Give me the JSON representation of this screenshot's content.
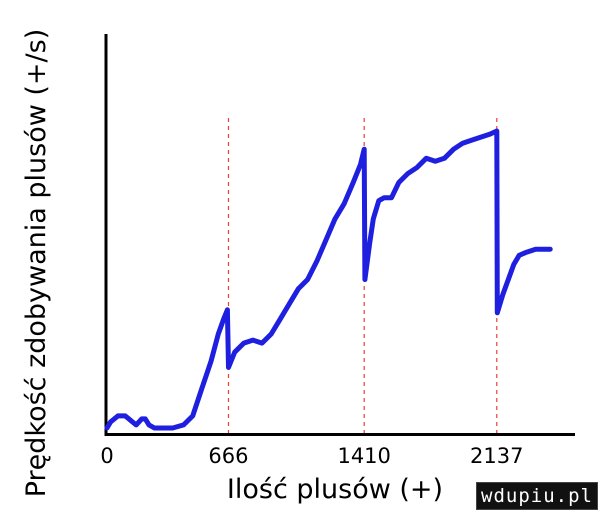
{
  "chart_data": {
    "type": "line",
    "title": "",
    "xlabel": "Ilość plusów (+)",
    "ylabel": "Prędkość zdobywania plusów (+/s)",
    "xlim": [
      0,
      2500
    ],
    "ylim": [
      0,
      100
    ],
    "x_ticks": [
      0,
      666,
      1410,
      2137
    ],
    "x_tick_labels": [
      "0",
      "666",
      "1410",
      "2137"
    ],
    "grid": "dashed red vertical lines at x = 666, 1410, 2137",
    "series": [
      {
        "values": [
          [
            0,
            1
          ],
          [
            20,
            3
          ],
          [
            60,
            5
          ],
          [
            100,
            5
          ],
          [
            140,
            3
          ],
          [
            160,
            2
          ],
          [
            190,
            4
          ],
          [
            210,
            4
          ],
          [
            230,
            2
          ],
          [
            260,
            1
          ],
          [
            320,
            1
          ],
          [
            360,
            1
          ],
          [
            420,
            2
          ],
          [
            470,
            5
          ],
          [
            520,
            14
          ],
          [
            570,
            23
          ],
          [
            610,
            32
          ],
          [
            640,
            37
          ],
          [
            660,
            40
          ],
          [
            666,
            21
          ],
          [
            700,
            26
          ],
          [
            750,
            29
          ],
          [
            800,
            30
          ],
          [
            850,
            29
          ],
          [
            900,
            32
          ],
          [
            950,
            37
          ],
          [
            1000,
            42
          ],
          [
            1050,
            47
          ],
          [
            1100,
            50
          ],
          [
            1150,
            56
          ],
          [
            1200,
            63
          ],
          [
            1250,
            70
          ],
          [
            1300,
            75
          ],
          [
            1350,
            82
          ],
          [
            1390,
            88
          ],
          [
            1410,
            93
          ],
          [
            1414,
            50
          ],
          [
            1440,
            62
          ],
          [
            1460,
            70
          ],
          [
            1490,
            76
          ],
          [
            1520,
            77
          ],
          [
            1560,
            77
          ],
          [
            1600,
            82
          ],
          [
            1650,
            85
          ],
          [
            1700,
            87
          ],
          [
            1750,
            90
          ],
          [
            1800,
            89
          ],
          [
            1850,
            90
          ],
          [
            1900,
            93
          ],
          [
            1950,
            95
          ],
          [
            2000,
            96
          ],
          [
            2050,
            97
          ],
          [
            2100,
            98
          ],
          [
            2137,
            99
          ],
          [
            2140,
            39
          ],
          [
            2170,
            45
          ],
          [
            2200,
            50
          ],
          [
            2230,
            55
          ],
          [
            2260,
            58
          ],
          [
            2300,
            59
          ],
          [
            2350,
            60
          ],
          [
            2400,
            60
          ],
          [
            2430,
            60
          ]
        ]
      }
    ]
  },
  "colors": {
    "line": "#1f1fe0",
    "grid": "#e8403a",
    "axis": "#000000"
  },
  "watermark": "wdupiu.pl"
}
